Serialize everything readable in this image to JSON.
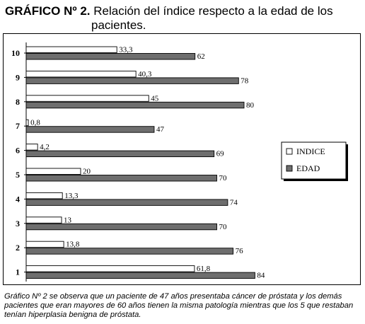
{
  "title": {
    "label": "GRÁFICO Nº 2.",
    "line1": "Relación del índice respecto a la edad de los",
    "line2": "pacientes."
  },
  "chart_data": {
    "type": "bar",
    "orientation": "horizontal",
    "categories": [
      "1",
      "2",
      "3",
      "4",
      "5",
      "6",
      "7",
      "8",
      "9",
      "10"
    ],
    "series": [
      {
        "name": "INDICE",
        "color": "#ffffff",
        "values": [
          61.8,
          13.8,
          13,
          13.3,
          20,
          4.2,
          0.8,
          45,
          40.3,
          33.3
        ]
      },
      {
        "name": "EDAD",
        "color": "#6e6e6e",
        "values": [
          84,
          76,
          70,
          74,
          70,
          69,
          47,
          80,
          78,
          62
        ]
      }
    ],
    "value_labels": {
      "INDICE": [
        "61,8",
        "13,8",
        "13",
        "13,3",
        "20",
        "4,2",
        "0,8",
        "45",
        "40,3",
        "33,3"
      ],
      "EDAD": [
        "84",
        "76",
        "70",
        "74",
        "70",
        "69",
        "47",
        "80",
        "78",
        "62"
      ]
    },
    "xlim": [
      0,
      100
    ],
    "grid": false,
    "legend_position": "right"
  },
  "caption": "Gráfico Nº 2 se observa que un  paciente de  47 años presentaba cáncer de próstata y los demás pacientes que eran  mayores de 60 años tienen la misma patología mientras que los 5 que restaban tenían hiperplasia benigna de próstata."
}
